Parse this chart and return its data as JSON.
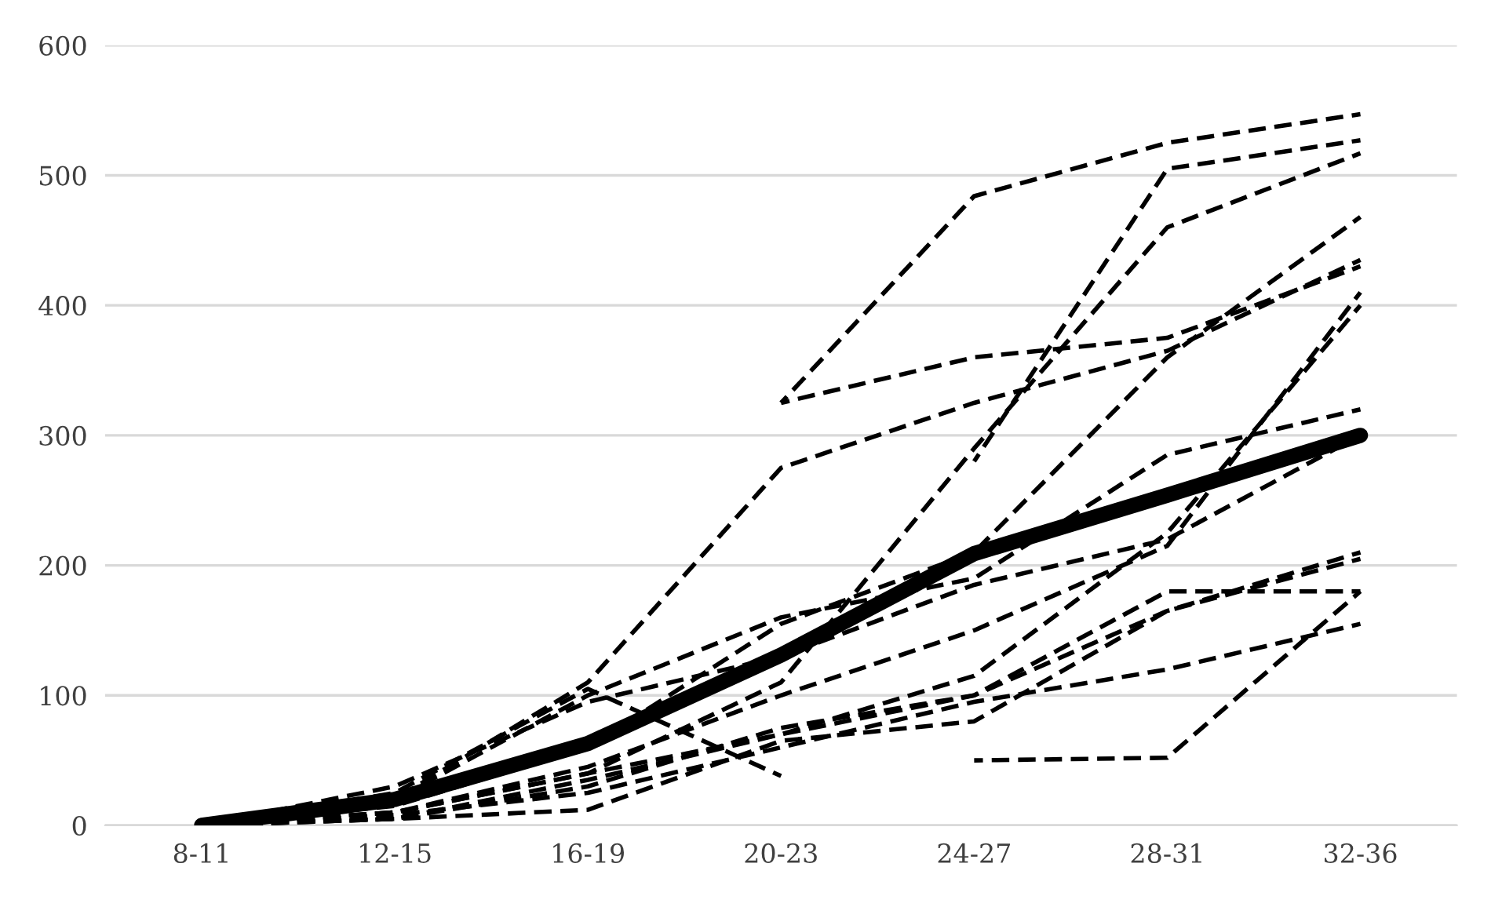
{
  "chart_data": {
    "type": "line",
    "categories": [
      "8-11",
      "12-15",
      "16-19",
      "20-23",
      "24-27",
      "28-31",
      "32-36"
    ],
    "ylim": [
      0,
      600
    ],
    "yticks": [
      0,
      100,
      200,
      300,
      400,
      500,
      600
    ],
    "grid": "y",
    "marker": "none",
    "line_style": "dashed",
    "series": [
      {
        "color": "#000000",
        "values": [
          null,
          null,
          null,
          325,
          484,
          525,
          547
        ]
      },
      {
        "color": "#000000",
        "values": [
          null,
          null,
          null,
          325,
          360,
          375,
          430
        ]
      },
      {
        "color": "#000000",
        "values": [
          0,
          20,
          110,
          275,
          325,
          365,
          435
        ]
      },
      {
        "color": "#000000",
        "values": [
          null,
          null,
          null,
          null,
          280,
          505,
          527
        ]
      },
      {
        "color": "#000000",
        "values": [
          0,
          10,
          40,
          110,
          290,
          460,
          517
        ]
      },
      {
        "color": "#000000",
        "values": [
          0,
          15,
          60,
          155,
          210,
          360,
          468
        ]
      },
      {
        "color": "#000000",
        "values": [
          0,
          10,
          45,
          100,
          150,
          215,
          410
        ]
      },
      {
        "color": "#000000",
        "values": [
          0,
          5,
          35,
          70,
          115,
          225,
          400
        ]
      },
      {
        "color": "#000000",
        "values": [
          0,
          20,
          100,
          160,
          190,
          285,
          320
        ]
      },
      {
        "color": "#000000",
        "values": [
          0,
          30,
          95,
          130,
          185,
          220,
          300
        ]
      },
      {
        "color": "#000000",
        "values": [
          0,
          10,
          40,
          70,
          100,
          165,
          210
        ]
      },
      {
        "color": "#000000",
        "values": [
          0,
          5,
          30,
          75,
          100,
          180,
          180
        ]
      },
      {
        "color": "#000000",
        "values": [
          0,
          8,
          25,
          60,
          95,
          120,
          155
        ]
      },
      {
        "color": "#000000",
        "values": [
          null,
          null,
          null,
          null,
          50,
          52,
          180
        ]
      },
      {
        "color": "#000000",
        "values": [
          0,
          25,
          105,
          38,
          null,
          null,
          null
        ]
      },
      {
        "color": "#000000",
        "values": [
          0,
          5,
          12,
          65,
          80,
          165,
          205
        ]
      },
      {
        "color": "#000000",
        "line_style": "solid",
        "values": [
          0,
          20,
          63,
          131,
          209,
          254,
          300
        ]
      }
    ]
  }
}
